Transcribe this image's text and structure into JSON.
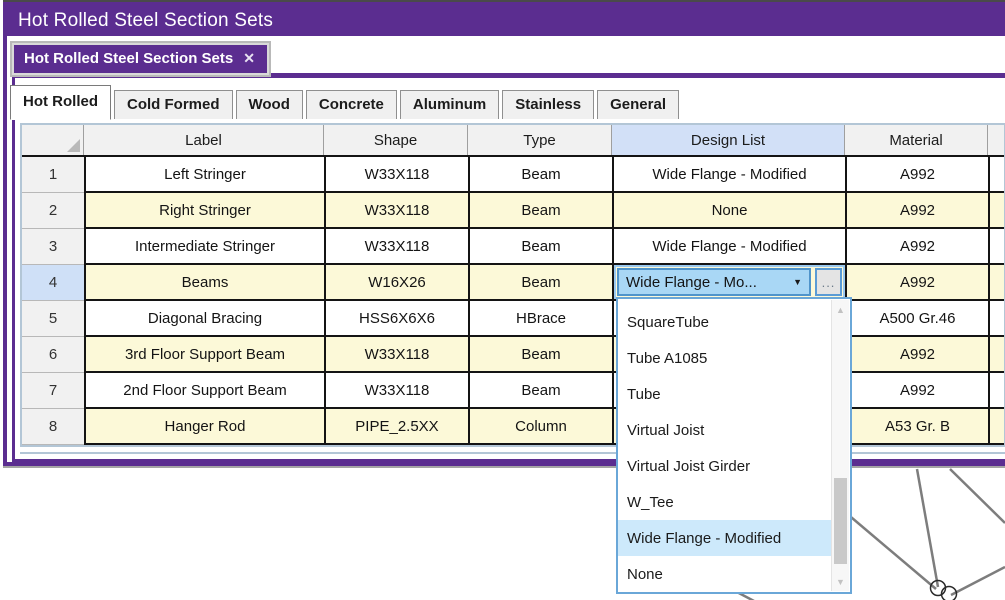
{
  "window": {
    "title": "Hot Rolled Steel Section Sets"
  },
  "doc_tab": {
    "label": "Hot Rolled Steel Section Sets",
    "close_glyph": "✕"
  },
  "tabs": [
    {
      "label": "Hot Rolled",
      "active": true
    },
    {
      "label": "Cold Formed",
      "active": false
    },
    {
      "label": "Wood",
      "active": false
    },
    {
      "label": "Concrete",
      "active": false
    },
    {
      "label": "Aluminum",
      "active": false
    },
    {
      "label": "Stainless",
      "active": false
    },
    {
      "label": "General",
      "active": false
    }
  ],
  "table": {
    "columns": [
      "Label",
      "Shape",
      "Type",
      "Design List",
      "Material"
    ],
    "selected_column": "Design List",
    "selected_row": "4",
    "rows": [
      {
        "num": "1",
        "label": "Left Stringer",
        "shape": "W33X118",
        "type": "Beam",
        "design_list": "Wide Flange - Modified",
        "material": "A992"
      },
      {
        "num": "2",
        "label": "Right Stringer",
        "shape": "W33X118",
        "type": "Beam",
        "design_list": "None",
        "material": "A992"
      },
      {
        "num": "3",
        "label": "Intermediate Stringer",
        "shape": "W33X118",
        "type": "Beam",
        "design_list": "Wide Flange - Modified",
        "material": "A992"
      },
      {
        "num": "4",
        "label": "Beams",
        "shape": "W16X26",
        "type": "Beam",
        "design_list": "",
        "material": "A992"
      },
      {
        "num": "5",
        "label": "Diagonal Bracing",
        "shape": "HSS6X6X6",
        "type": "HBrace",
        "design_list": "",
        "material": "A500 Gr.46"
      },
      {
        "num": "6",
        "label": "3rd Floor Support Beam",
        "shape": "W33X118",
        "type": "Beam",
        "design_list": "",
        "material": "A992"
      },
      {
        "num": "7",
        "label": "2nd Floor Support Beam",
        "shape": "W33X118",
        "type": "Beam",
        "design_list": "",
        "material": "A992"
      },
      {
        "num": "8",
        "label": "Hanger Rod",
        "shape": "PIPE_2.5XX",
        "type": "Column",
        "design_list": "",
        "material": "A53 Gr. B"
      }
    ]
  },
  "combobox": {
    "value": "Wide Flange - Mo...",
    "arrow_glyph": "▼",
    "more_label": "..."
  },
  "dropdown": {
    "items": [
      "SquareTube",
      "Tube A1085",
      "Tube",
      "Virtual Joist",
      "Virtual Joist Girder",
      "W_Tee",
      "Wide Flange - Modified",
      "None"
    ],
    "selected": "Wide Flange - Modified",
    "scroll_up_glyph": "▲",
    "scroll_down_glyph": "▼"
  },
  "colors": {
    "accent_purple": "#5b2d90",
    "selection_blue": "#d2e0f7",
    "row_yellow": "#fcf9d8",
    "combo_blue": "#a9d7f5",
    "dropdown_highlight": "#cde9fb"
  }
}
